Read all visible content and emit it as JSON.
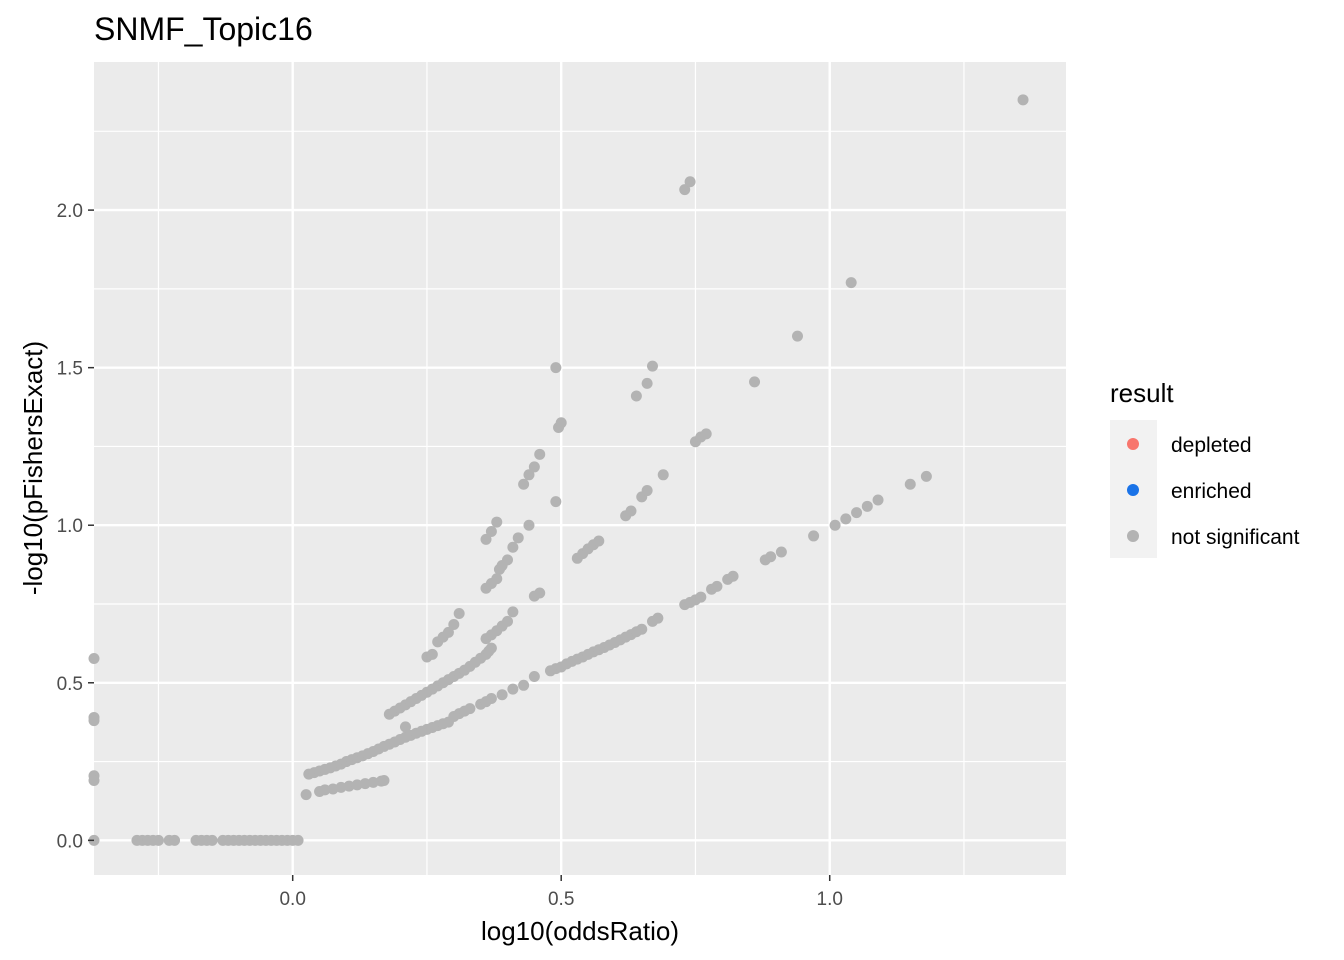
{
  "chart_data": {
    "type": "scatter",
    "title": "SNMF_Topic16",
    "xlabel": "log10(oddsRatio)",
    "ylabel": "-log10(pFishersExact)",
    "xlim": [
      -0.37,
      1.44
    ],
    "ylim": [
      -0.11,
      2.47
    ],
    "x_ticks": [
      0.0,
      0.5,
      1.0
    ],
    "x_tick_labels": [
      "0.0",
      "0.5",
      "1.0"
    ],
    "y_ticks": [
      0.0,
      0.5,
      1.0,
      1.5,
      2.0
    ],
    "y_tick_labels": [
      "0.0",
      "0.5",
      "1.0",
      "1.5",
      "2.0"
    ],
    "grid": true,
    "legend": {
      "title": "result",
      "position": "right",
      "items": [
        {
          "label": "depleted",
          "color": "#F8766D"
        },
        {
          "label": "enriched",
          "color": "#1A73E8"
        },
        {
          "label": "not significant",
          "color": "#B3B3B3"
        }
      ]
    },
    "series": [
      {
        "name": "not significant",
        "color": "#B3B3B3",
        "points": [
          [
            -0.37,
            0.577
          ],
          [
            -0.37,
            0.39
          ],
          [
            -0.37,
            0.38
          ],
          [
            -0.37,
            0.205
          ],
          [
            -0.37,
            0.19
          ],
          [
            -0.37,
            0.0
          ],
          [
            -0.29,
            0.0
          ],
          [
            -0.28,
            0.0
          ],
          [
            -0.27,
            0.0
          ],
          [
            -0.26,
            0.0
          ],
          [
            -0.25,
            0.0
          ],
          [
            -0.23,
            0.0
          ],
          [
            -0.22,
            0.0
          ],
          [
            -0.18,
            0.0
          ],
          [
            -0.17,
            0.0
          ],
          [
            -0.16,
            0.0
          ],
          [
            -0.15,
            0.0
          ],
          [
            -0.13,
            0.0
          ],
          [
            -0.12,
            0.0
          ],
          [
            -0.11,
            0.0
          ],
          [
            -0.1,
            0.0
          ],
          [
            -0.09,
            0.0
          ],
          [
            -0.08,
            0.0
          ],
          [
            -0.07,
            0.0
          ],
          [
            -0.06,
            0.0
          ],
          [
            -0.05,
            0.0
          ],
          [
            -0.04,
            0.0
          ],
          [
            -0.03,
            0.0
          ],
          [
            -0.02,
            0.0
          ],
          [
            -0.01,
            0.0
          ],
          [
            0.0,
            0.0
          ],
          [
            0.01,
            0.0
          ],
          [
            0.025,
            0.145
          ],
          [
            0.05,
            0.155
          ],
          [
            0.06,
            0.16
          ],
          [
            0.075,
            0.163
          ],
          [
            0.09,
            0.168
          ],
          [
            0.105,
            0.172
          ],
          [
            0.12,
            0.176
          ],
          [
            0.135,
            0.18
          ],
          [
            0.15,
            0.184
          ],
          [
            0.165,
            0.188
          ],
          [
            0.17,
            0.19
          ],
          [
            0.03,
            0.21
          ],
          [
            0.04,
            0.215
          ],
          [
            0.05,
            0.22
          ],
          [
            0.06,
            0.225
          ],
          [
            0.07,
            0.23
          ],
          [
            0.08,
            0.236
          ],
          [
            0.09,
            0.242
          ],
          [
            0.1,
            0.25
          ],
          [
            0.11,
            0.256
          ],
          [
            0.12,
            0.262
          ],
          [
            0.13,
            0.268
          ],
          [
            0.14,
            0.275
          ],
          [
            0.15,
            0.282
          ],
          [
            0.16,
            0.29
          ],
          [
            0.17,
            0.298
          ],
          [
            0.18,
            0.305
          ],
          [
            0.19,
            0.312
          ],
          [
            0.2,
            0.32
          ],
          [
            0.21,
            0.327
          ],
          [
            0.22,
            0.333
          ],
          [
            0.23,
            0.34
          ],
          [
            0.24,
            0.346
          ],
          [
            0.25,
            0.352
          ],
          [
            0.26,
            0.358
          ],
          [
            0.27,
            0.364
          ],
          [
            0.28,
            0.37
          ],
          [
            0.29,
            0.375
          ],
          [
            0.21,
            0.36
          ],
          [
            0.3,
            0.393
          ],
          [
            0.31,
            0.402
          ],
          [
            0.32,
            0.41
          ],
          [
            0.33,
            0.418
          ],
          [
            0.35,
            0.432
          ],
          [
            0.36,
            0.44
          ],
          [
            0.37,
            0.45
          ],
          [
            0.39,
            0.462
          ],
          [
            0.41,
            0.48
          ],
          [
            0.43,
            0.492
          ],
          [
            0.45,
            0.52
          ],
          [
            0.48,
            0.538
          ],
          [
            0.49,
            0.545
          ],
          [
            0.5,
            0.55
          ],
          [
            0.51,
            0.56
          ],
          [
            0.52,
            0.568
          ],
          [
            0.53,
            0.575
          ],
          [
            0.54,
            0.582
          ],
          [
            0.55,
            0.59
          ],
          [
            0.56,
            0.598
          ],
          [
            0.57,
            0.605
          ],
          [
            0.58,
            0.612
          ],
          [
            0.59,
            0.62
          ],
          [
            0.6,
            0.628
          ],
          [
            0.61,
            0.636
          ],
          [
            0.62,
            0.645
          ],
          [
            0.63,
            0.653
          ],
          [
            0.64,
            0.662
          ],
          [
            0.65,
            0.67
          ],
          [
            0.67,
            0.695
          ],
          [
            0.68,
            0.705
          ],
          [
            0.73,
            0.748
          ],
          [
            0.74,
            0.755
          ],
          [
            0.75,
            0.763
          ],
          [
            0.76,
            0.772
          ],
          [
            0.78,
            0.797
          ],
          [
            0.79,
            0.806
          ],
          [
            0.81,
            0.828
          ],
          [
            0.82,
            0.838
          ],
          [
            0.88,
            0.89
          ],
          [
            0.89,
            0.9
          ],
          [
            0.91,
            0.915
          ],
          [
            0.97,
            0.966
          ],
          [
            1.01,
            1.0
          ],
          [
            1.03,
            1.02
          ],
          [
            1.05,
            1.04
          ],
          [
            1.07,
            1.06
          ],
          [
            1.09,
            1.08
          ],
          [
            1.15,
            1.13
          ],
          [
            1.18,
            1.155
          ],
          [
            0.18,
            0.4
          ],
          [
            0.19,
            0.41
          ],
          [
            0.2,
            0.42
          ],
          [
            0.21,
            0.43
          ],
          [
            0.22,
            0.44
          ],
          [
            0.23,
            0.45
          ],
          [
            0.24,
            0.46
          ],
          [
            0.25,
            0.47
          ],
          [
            0.26,
            0.48
          ],
          [
            0.27,
            0.49
          ],
          [
            0.28,
            0.5
          ],
          [
            0.29,
            0.51
          ],
          [
            0.3,
            0.52
          ],
          [
            0.31,
            0.53
          ],
          [
            0.32,
            0.54
          ],
          [
            0.33,
            0.552
          ],
          [
            0.34,
            0.565
          ],
          [
            0.35,
            0.578
          ],
          [
            0.36,
            0.59
          ],
          [
            0.365,
            0.6
          ],
          [
            0.37,
            0.61
          ],
          [
            0.36,
            0.64
          ],
          [
            0.37,
            0.652
          ],
          [
            0.38,
            0.665
          ],
          [
            0.39,
            0.68
          ],
          [
            0.4,
            0.695
          ],
          [
            0.41,
            0.725
          ],
          [
            0.45,
            0.775
          ],
          [
            0.46,
            0.785
          ],
          [
            0.53,
            0.895
          ],
          [
            0.54,
            0.91
          ],
          [
            0.55,
            0.925
          ],
          [
            0.56,
            0.938
          ],
          [
            0.57,
            0.95
          ],
          [
            0.62,
            1.03
          ],
          [
            0.63,
            1.045
          ],
          [
            0.65,
            1.09
          ],
          [
            0.66,
            1.11
          ],
          [
            0.69,
            1.16
          ],
          [
            0.75,
            1.265
          ],
          [
            0.76,
            1.28
          ],
          [
            0.77,
            1.29
          ],
          [
            0.86,
            1.455
          ],
          [
            0.94,
            1.6
          ],
          [
            1.04,
            1.77
          ],
          [
            0.73,
            2.065
          ],
          [
            0.74,
            2.09
          ],
          [
            1.36,
            2.35
          ],
          [
            0.25,
            0.582
          ],
          [
            0.26,
            0.59
          ],
          [
            0.27,
            0.63
          ],
          [
            0.28,
            0.645
          ],
          [
            0.29,
            0.66
          ],
          [
            0.3,
            0.685
          ],
          [
            0.31,
            0.72
          ],
          [
            0.36,
            0.8
          ],
          [
            0.37,
            0.815
          ],
          [
            0.38,
            0.83
          ],
          [
            0.385,
            0.86
          ],
          [
            0.39,
            0.872
          ],
          [
            0.4,
            0.89
          ],
          [
            0.41,
            0.93
          ],
          [
            0.42,
            0.96
          ],
          [
            0.44,
            1.0
          ],
          [
            0.36,
            0.955
          ],
          [
            0.37,
            0.98
          ],
          [
            0.38,
            1.01
          ],
          [
            0.43,
            1.13
          ],
          [
            0.44,
            1.16
          ],
          [
            0.45,
            1.185
          ],
          [
            0.46,
            1.225
          ],
          [
            0.49,
            1.075
          ],
          [
            0.495,
            1.31
          ],
          [
            0.5,
            1.325
          ],
          [
            0.49,
            1.5
          ],
          [
            0.64,
            1.41
          ],
          [
            0.66,
            1.45
          ],
          [
            0.67,
            1.505
          ]
        ]
      }
    ]
  }
}
